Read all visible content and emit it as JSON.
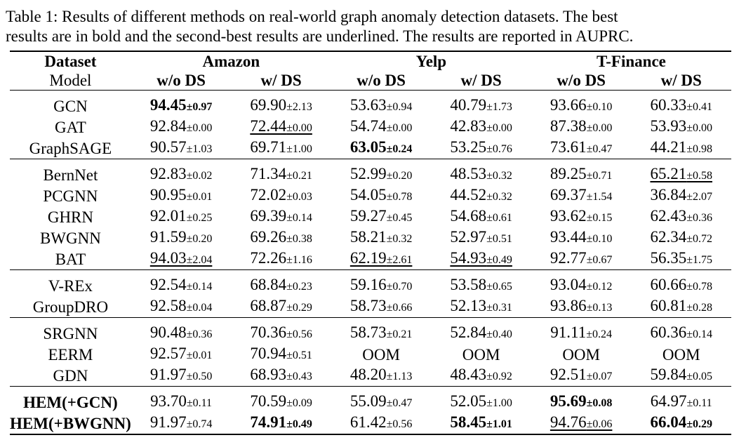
{
  "caption": {
    "line1": "Table 1: Results of different methods on real-world graph anomaly detection datasets. The best",
    "line2": "results are in bold and the second-best results are underlined. The results are reported in AUPRC."
  },
  "header": {
    "dataset_label": "Dataset",
    "model_label": "Model",
    "datasets": [
      "Amazon",
      "Yelp",
      "T-Finance"
    ],
    "subcols": [
      "w/o DS",
      "w/ DS"
    ]
  },
  "groups": [
    [
      {
        "model": "GCN",
        "bold": false,
        "cells": [
          {
            "v": "94.45",
            "s": "±0.97",
            "f": "b"
          },
          {
            "v": "69.90",
            "s": "±2.13"
          },
          {
            "v": "53.63",
            "s": "±0.94"
          },
          {
            "v": "40.79",
            "s": "±1.73"
          },
          {
            "v": "93.66",
            "s": "±0.10"
          },
          {
            "v": "60.33",
            "s": "±0.41"
          }
        ]
      },
      {
        "model": "GAT",
        "bold": false,
        "cells": [
          {
            "v": "92.84",
            "s": "±0.00"
          },
          {
            "v": "72.44",
            "s": "±0.00",
            "f": "u"
          },
          {
            "v": "54.74",
            "s": "±0.00"
          },
          {
            "v": "42.83",
            "s": "±0.00"
          },
          {
            "v": "87.38",
            "s": "±0.00"
          },
          {
            "v": "53.93",
            "s": "±0.00"
          }
        ]
      },
      {
        "model": "GraphSAGE",
        "bold": false,
        "cells": [
          {
            "v": "90.57",
            "s": "±1.03"
          },
          {
            "v": "69.71",
            "s": "±1.00"
          },
          {
            "v": "63.05",
            "s": "±0.24",
            "f": "b"
          },
          {
            "v": "53.25",
            "s": "±0.76"
          },
          {
            "v": "73.61",
            "s": "±0.47"
          },
          {
            "v": "44.21",
            "s": "±0.98"
          }
        ]
      }
    ],
    [
      {
        "model": "BernNet",
        "bold": false,
        "cells": [
          {
            "v": "92.83",
            "s": "±0.02"
          },
          {
            "v": "71.34",
            "s": "±0.21"
          },
          {
            "v": "52.99",
            "s": "±0.20"
          },
          {
            "v": "48.53",
            "s": "±0.32"
          },
          {
            "v": "89.25",
            "s": "±0.71"
          },
          {
            "v": "65.21",
            "s": "±0.58",
            "f": "u"
          }
        ]
      },
      {
        "model": "PCGNN",
        "bold": false,
        "cells": [
          {
            "v": "90.95",
            "s": "±0.01"
          },
          {
            "v": "72.02",
            "s": "±0.03"
          },
          {
            "v": "54.05",
            "s": "±0.78"
          },
          {
            "v": "44.52",
            "s": "±0.32"
          },
          {
            "v": "69.37",
            "s": "±1.54"
          },
          {
            "v": "36.84",
            "s": "±2.07"
          }
        ]
      },
      {
        "model": "GHRN",
        "bold": false,
        "cells": [
          {
            "v": "92.01",
            "s": "±0.25"
          },
          {
            "v": "69.39",
            "s": "±0.14"
          },
          {
            "v": "59.27",
            "s": "±0.45"
          },
          {
            "v": "54.68",
            "s": "±0.61"
          },
          {
            "v": "93.62",
            "s": "±0.15"
          },
          {
            "v": "62.43",
            "s": "±0.36"
          }
        ]
      },
      {
        "model": "BWGNN",
        "bold": false,
        "cells": [
          {
            "v": "91.59",
            "s": "±0.20"
          },
          {
            "v": "69.26",
            "s": "±0.38"
          },
          {
            "v": "58.21",
            "s": "±0.32"
          },
          {
            "v": "52.97",
            "s": "±0.51"
          },
          {
            "v": "93.44",
            "s": "±0.10"
          },
          {
            "v": "62.34",
            "s": "±0.72"
          }
        ]
      },
      {
        "model": "BAT",
        "bold": false,
        "cells": [
          {
            "v": "94.03",
            "s": "±2.04",
            "f": "u"
          },
          {
            "v": "72.26",
            "s": "±1.16"
          },
          {
            "v": "62.19",
            "s": "±2.61",
            "f": "u"
          },
          {
            "v": "54.93",
            "s": "±0.49",
            "f": "u"
          },
          {
            "v": "92.77",
            "s": "±0.67"
          },
          {
            "v": "56.35",
            "s": "±1.75"
          }
        ]
      }
    ],
    [
      {
        "model": "V-REx",
        "bold": false,
        "cells": [
          {
            "v": "92.54",
            "s": "±0.14"
          },
          {
            "v": "68.84",
            "s": "±0.23"
          },
          {
            "v": "59.16",
            "s": "±0.70"
          },
          {
            "v": "53.58",
            "s": "±0.65"
          },
          {
            "v": "93.04",
            "s": "±0.12"
          },
          {
            "v": "60.66",
            "s": "±0.78"
          }
        ]
      },
      {
        "model": "GroupDRO",
        "bold": false,
        "cells": [
          {
            "v": "92.58",
            "s": "±0.04"
          },
          {
            "v": "68.87",
            "s": "±0.29"
          },
          {
            "v": "58.73",
            "s": "±0.66"
          },
          {
            "v": "52.13",
            "s": "±0.31"
          },
          {
            "v": "93.86",
            "s": "±0.13"
          },
          {
            "v": "60.81",
            "s": "±0.28"
          }
        ]
      }
    ],
    [
      {
        "model": "SRGNN",
        "bold": false,
        "cells": [
          {
            "v": "90.48",
            "s": "±0.36"
          },
          {
            "v": "70.36",
            "s": "±0.56"
          },
          {
            "v": "58.73",
            "s": "±0.21"
          },
          {
            "v": "52.84",
            "s": "±0.40"
          },
          {
            "v": "91.11",
            "s": "±0.24"
          },
          {
            "v": "60.36",
            "s": "±0.14"
          }
        ]
      },
      {
        "model": "EERM",
        "bold": false,
        "cells": [
          {
            "v": "92.57",
            "s": "±0.01"
          },
          {
            "v": "70.94",
            "s": "±0.51"
          },
          {
            "v": "OOM",
            "s": ""
          },
          {
            "v": "OOM",
            "s": ""
          },
          {
            "v": "OOM",
            "s": ""
          },
          {
            "v": "OOM",
            "s": ""
          }
        ]
      },
      {
        "model": "GDN",
        "bold": false,
        "cells": [
          {
            "v": "91.97",
            "s": "±0.50"
          },
          {
            "v": "68.93",
            "s": "±0.43"
          },
          {
            "v": "48.20",
            "s": "±1.13"
          },
          {
            "v": "48.43",
            "s": "±0.92"
          },
          {
            "v": "92.51",
            "s": "±0.07"
          },
          {
            "v": "59.84",
            "s": "±0.05"
          }
        ]
      }
    ],
    [
      {
        "model": "HEM(+GCN)",
        "bold": true,
        "cells": [
          {
            "v": "93.70",
            "s": "±0.11"
          },
          {
            "v": "70.59",
            "s": "±0.09"
          },
          {
            "v": "55.09",
            "s": "±0.47"
          },
          {
            "v": "52.05",
            "s": "±1.00"
          },
          {
            "v": "95.69",
            "s": "±0.08",
            "f": "b"
          },
          {
            "v": "64.97",
            "s": "±0.11"
          }
        ]
      },
      {
        "model": "HEM(+BWGNN)",
        "bold": true,
        "cells": [
          {
            "v": "91.97",
            "s": "±0.74"
          },
          {
            "v": "74.91",
            "s": "±0.49",
            "f": "b"
          },
          {
            "v": "61.42",
            "s": "±0.56"
          },
          {
            "v": "58.45",
            "s": "±1.01",
            "f": "b"
          },
          {
            "v": "94.76",
            "s": "±0.06",
            "f": "u"
          },
          {
            "v": "66.04",
            "s": "±0.29",
            "f": "b"
          }
        ]
      }
    ]
  ]
}
